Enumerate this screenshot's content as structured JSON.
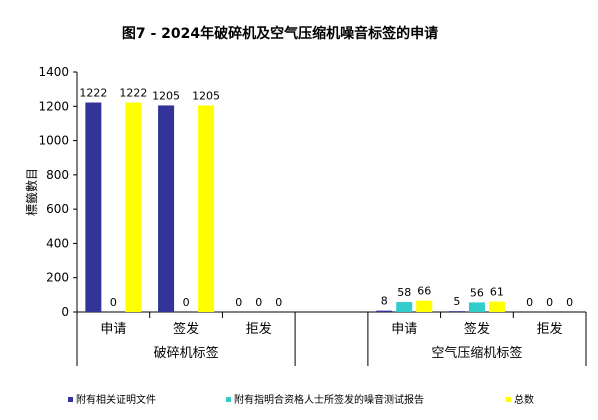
{
  "chart_data": {
    "type": "bar",
    "title": "图7 - 2024年破碎机及空气压缩机噪音标签的申请",
    "ylabel": "標籤數目",
    "xlabel": "",
    "ylim": [
      0,
      1400
    ],
    "yticks": [
      0,
      200,
      400,
      600,
      800,
      1000,
      1200,
      1400
    ],
    "groups": [
      {
        "name": "破碎机标签",
        "categories": [
          "申请",
          "签发",
          "拒发"
        ]
      },
      {
        "name": "空气压缩机标签",
        "categories": [
          "申请",
          "签发",
          "拒发"
        ]
      }
    ],
    "series": [
      {
        "name": "附有相关证明文件",
        "color": "#333399",
        "values": [
          1222,
          1205,
          0,
          8,
          5,
          0
        ]
      },
      {
        "name": "附有指明合资格人士所签发的噪音测试报告",
        "color": "#33CCCC",
        "values": [
          0,
          0,
          0,
          58,
          56,
          0
        ]
      },
      {
        "name": "总数",
        "color": "#FFFF00",
        "values": [
          1222,
          1205,
          0,
          66,
          61,
          0
        ]
      }
    ],
    "grid": false,
    "legend_position": "bottom"
  }
}
